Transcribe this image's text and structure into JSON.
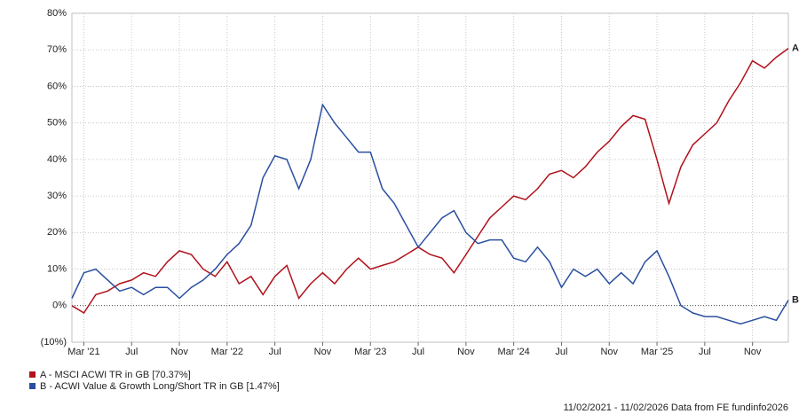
{
  "chart_data": {
    "type": "line",
    "categories": [
      null,
      "Mar '21",
      null,
      null,
      null,
      "Jul",
      null,
      null,
      null,
      "Nov",
      null,
      null,
      null,
      "Mar '22",
      null,
      null,
      null,
      "Jul",
      null,
      null,
      null,
      "Nov",
      null,
      null,
      null,
      "Mar '23",
      null,
      null,
      null,
      "Jul",
      null,
      null,
      null,
      "Nov",
      null,
      null,
      null,
      "Mar '24",
      null,
      null,
      null,
      "Jul",
      null,
      null,
      null,
      "Nov",
      null,
      null,
      null,
      "Mar '25",
      null,
      null,
      null,
      "Jul",
      null,
      null,
      null,
      "Nov",
      null,
      null,
      null
    ],
    "series": [
      {
        "name": "A - MSCI ACWI TR in GB [70.37%]",
        "end_label": "A",
        "color": "#b0121b",
        "values": [
          0,
          -2,
          3,
          4,
          6,
          7,
          9,
          8,
          12,
          15,
          14,
          10,
          8,
          12,
          6,
          8,
          3,
          8,
          11,
          2,
          6,
          9,
          6,
          10,
          13,
          10,
          11,
          12,
          14,
          16,
          14,
          13,
          9,
          14,
          19,
          24,
          27,
          30,
          29,
          32,
          36,
          37,
          35,
          38,
          42,
          45,
          49,
          52,
          51,
          40,
          28,
          38,
          44,
          47,
          50,
          56,
          61,
          67,
          65,
          68,
          70.4
        ]
      },
      {
        "name": "B - ACWI Value & Growth Long/Short TR in GB [1.47%]",
        "end_label": "B",
        "color": "#2a4fa0",
        "values": [
          2,
          9,
          10,
          7,
          4,
          5,
          3,
          5,
          5,
          2,
          5,
          7,
          10,
          14,
          17,
          22,
          35,
          41,
          40,
          32,
          40,
          55,
          50,
          46,
          42,
          42,
          32,
          28,
          22,
          16,
          20,
          24,
          26,
          20,
          17,
          18,
          18,
          13,
          12,
          16,
          12,
          5,
          10,
          8,
          10,
          6,
          9,
          6,
          12,
          15,
          8,
          0,
          -2,
          -3,
          -3,
          -4,
          -5,
          -4,
          -3,
          -4,
          1.5
        ]
      }
    ],
    "ylim": [
      -10,
      80
    ],
    "yticks": [
      {
        "value": -10,
        "label": "(10%)"
      },
      {
        "value": 0,
        "label": "0%"
      },
      {
        "value": 10,
        "label": "10%"
      },
      {
        "value": 20,
        "label": "20%"
      },
      {
        "value": 30,
        "label": "30%"
      },
      {
        "value": 40,
        "label": "40%"
      },
      {
        "value": 50,
        "label": "50%"
      },
      {
        "value": 60,
        "label": "60%"
      },
      {
        "value": 70,
        "label": "70%"
      },
      {
        "value": 80,
        "label": "80%"
      }
    ],
    "grid": true,
    "footer": "11/02/2021 - 11/02/2026 Data from FE fundinfo2026"
  }
}
